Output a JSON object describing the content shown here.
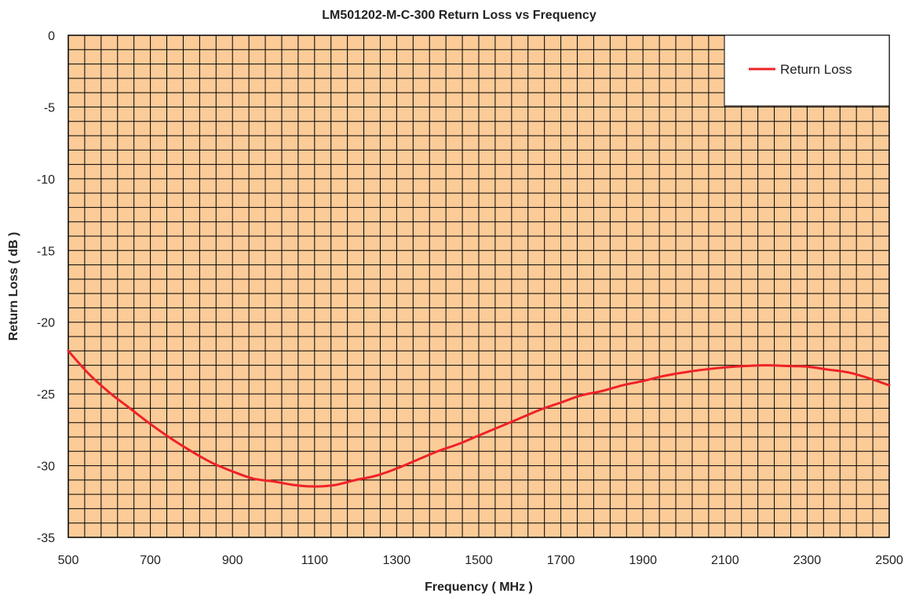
{
  "chart_data": {
    "type": "line",
    "title": "LM501202-M-C-300 Return Loss vs Frequency",
    "xlabel": "Frequency ( MHz )",
    "ylabel": "Return Loss ( dB )",
    "xlim": [
      500,
      2500
    ],
    "ylim": [
      -35,
      0
    ],
    "x_ticks": [
      500,
      700,
      900,
      1100,
      1300,
      1500,
      1700,
      1900,
      2100,
      2300,
      2500
    ],
    "y_ticks": [
      0,
      -5,
      -10,
      -15,
      -20,
      -25,
      -30,
      -35
    ],
    "grid": true,
    "grid_x_step": 40,
    "grid_y_step": 1,
    "plot_background": "#FBCB98",
    "grid_color": "#000000",
    "legend_position": "top-right",
    "series": [
      {
        "name": "Return Loss",
        "color": "#EE2227",
        "x": [
          500,
          550,
          600,
          650,
          700,
          750,
          800,
          850,
          900,
          950,
          1000,
          1050,
          1100,
          1150,
          1200,
          1250,
          1300,
          1350,
          1400,
          1450,
          1500,
          1550,
          1600,
          1650,
          1700,
          1750,
          1800,
          1850,
          1900,
          1950,
          2000,
          2050,
          2100,
          2150,
          2200,
          2250,
          2300,
          2350,
          2400,
          2450,
          2500
        ],
        "y": [
          -22.0,
          -23.6,
          -24.9,
          -26.0,
          -27.1,
          -28.1,
          -29.0,
          -29.8,
          -30.4,
          -30.9,
          -31.1,
          -31.35,
          -31.45,
          -31.35,
          -31.0,
          -30.7,
          -30.2,
          -29.6,
          -29.0,
          -28.5,
          -27.9,
          -27.3,
          -26.7,
          -26.1,
          -25.6,
          -25.1,
          -24.8,
          -24.4,
          -24.1,
          -23.75,
          -23.5,
          -23.3,
          -23.15,
          -23.05,
          -23.0,
          -23.05,
          -23.1,
          -23.3,
          -23.5,
          -23.9,
          -24.4
        ]
      }
    ]
  }
}
